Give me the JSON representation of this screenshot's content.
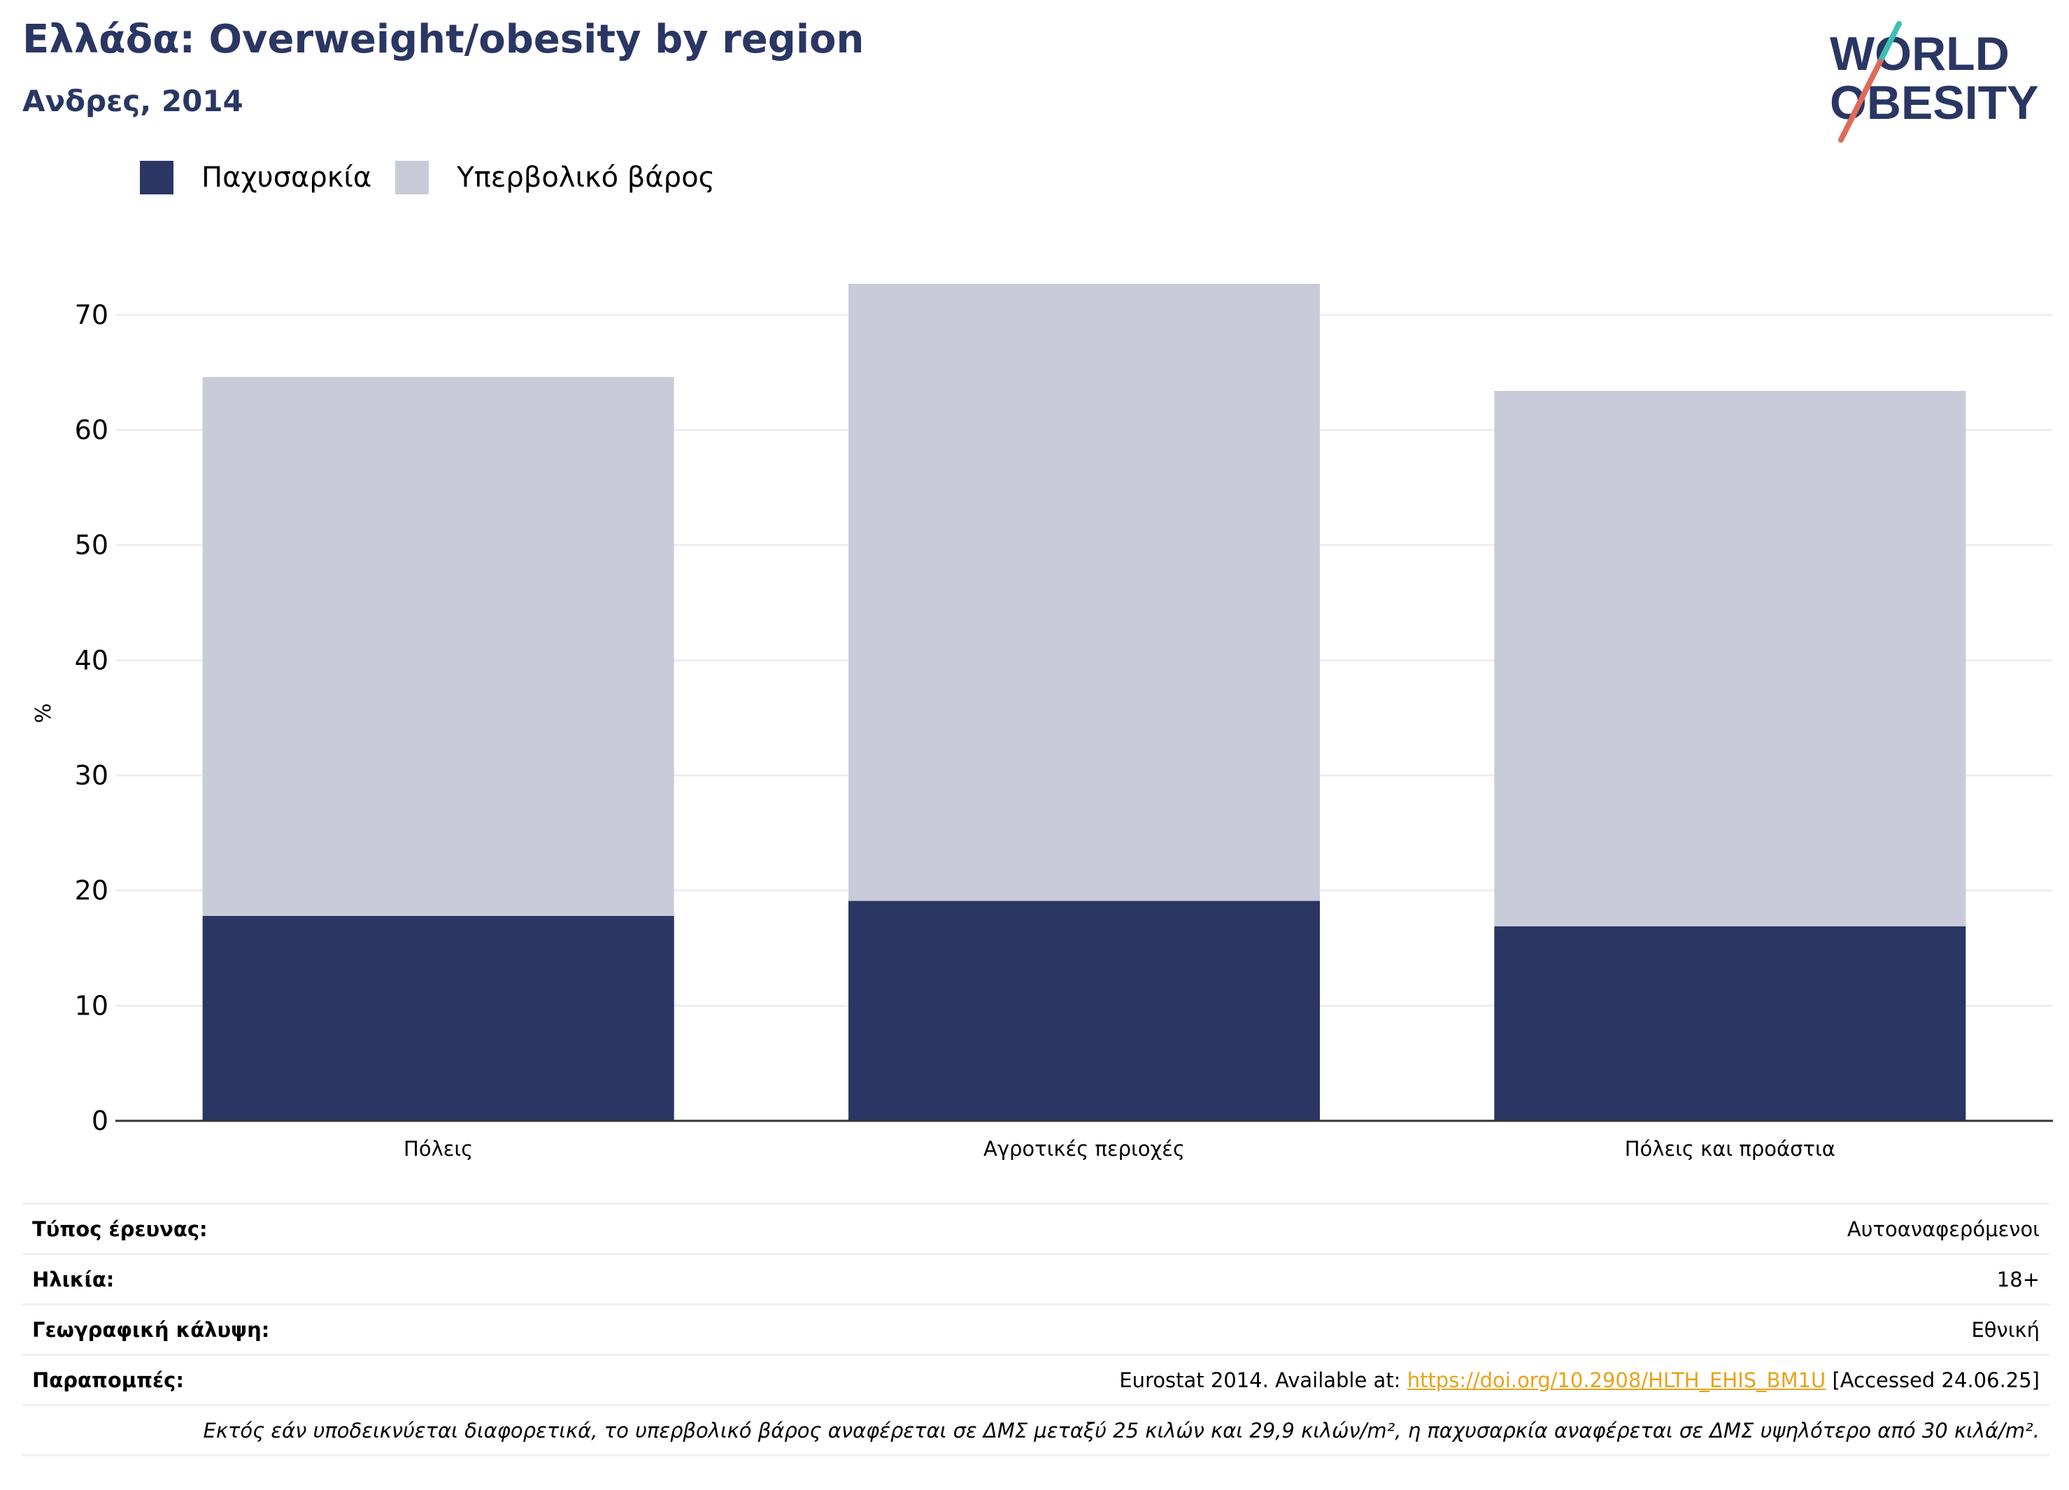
{
  "header": {
    "title": "Ελλάδα: Overweight/obesity by region",
    "subtitle": "Ανδρες, 2014"
  },
  "logo": {
    "line1": "WORLD",
    "line2": "OBESITY"
  },
  "colors": {
    "obesity": "#2a3663",
    "overweight": "#c9ccd8",
    "title": "#2a3663",
    "link": "#e8a21a"
  },
  "chart_data": {
    "type": "bar",
    "stacked": true,
    "categories": [
      "Πόλεις",
      "Αγροτικές περιοχές",
      "Πόλεις και προάστια"
    ],
    "series": [
      {
        "name": "Παχυσαρκία",
        "values": [
          17.8,
          19.1,
          16.9
        ]
      },
      {
        "name": "Υπερβολικό βάρος",
        "values": [
          46.8,
          53.6,
          46.5
        ]
      }
    ],
    "ylabel": "%",
    "ylim": [
      0,
      75
    ],
    "yticks": [
      0,
      10,
      20,
      30,
      40,
      50,
      60,
      70
    ],
    "grid": true,
    "legend": "top-left"
  },
  "info": {
    "survey_label": "Τύπος έρευνας:",
    "survey_value": "Αυτοαναφερόμενοι",
    "age_label": "Ηλικία:",
    "age_value": "18+",
    "coverage_label": "Γεωγραφική κάλυψη:",
    "coverage_value": "Εθνική",
    "refs_label": "Παραπομπές:",
    "refs_prefix": "Eurostat 2014. Available at: ",
    "refs_link": "https://doi.org/10.2908/HLTH_EHIS_BM1U",
    "refs_suffix": " [Accessed 24.06.25]",
    "note": "Εκτός εάν υποδεικνύεται διαφορετικά, το υπερβολικό βάρος αναφέρεται σε ΔΜΣ μεταξύ 25 κιλών και 29,9 κιλών/m², η παχυσαρκία αναφέρεται σε ΔΜΣ υψηλότερο από 30 κιλά/m²."
  }
}
